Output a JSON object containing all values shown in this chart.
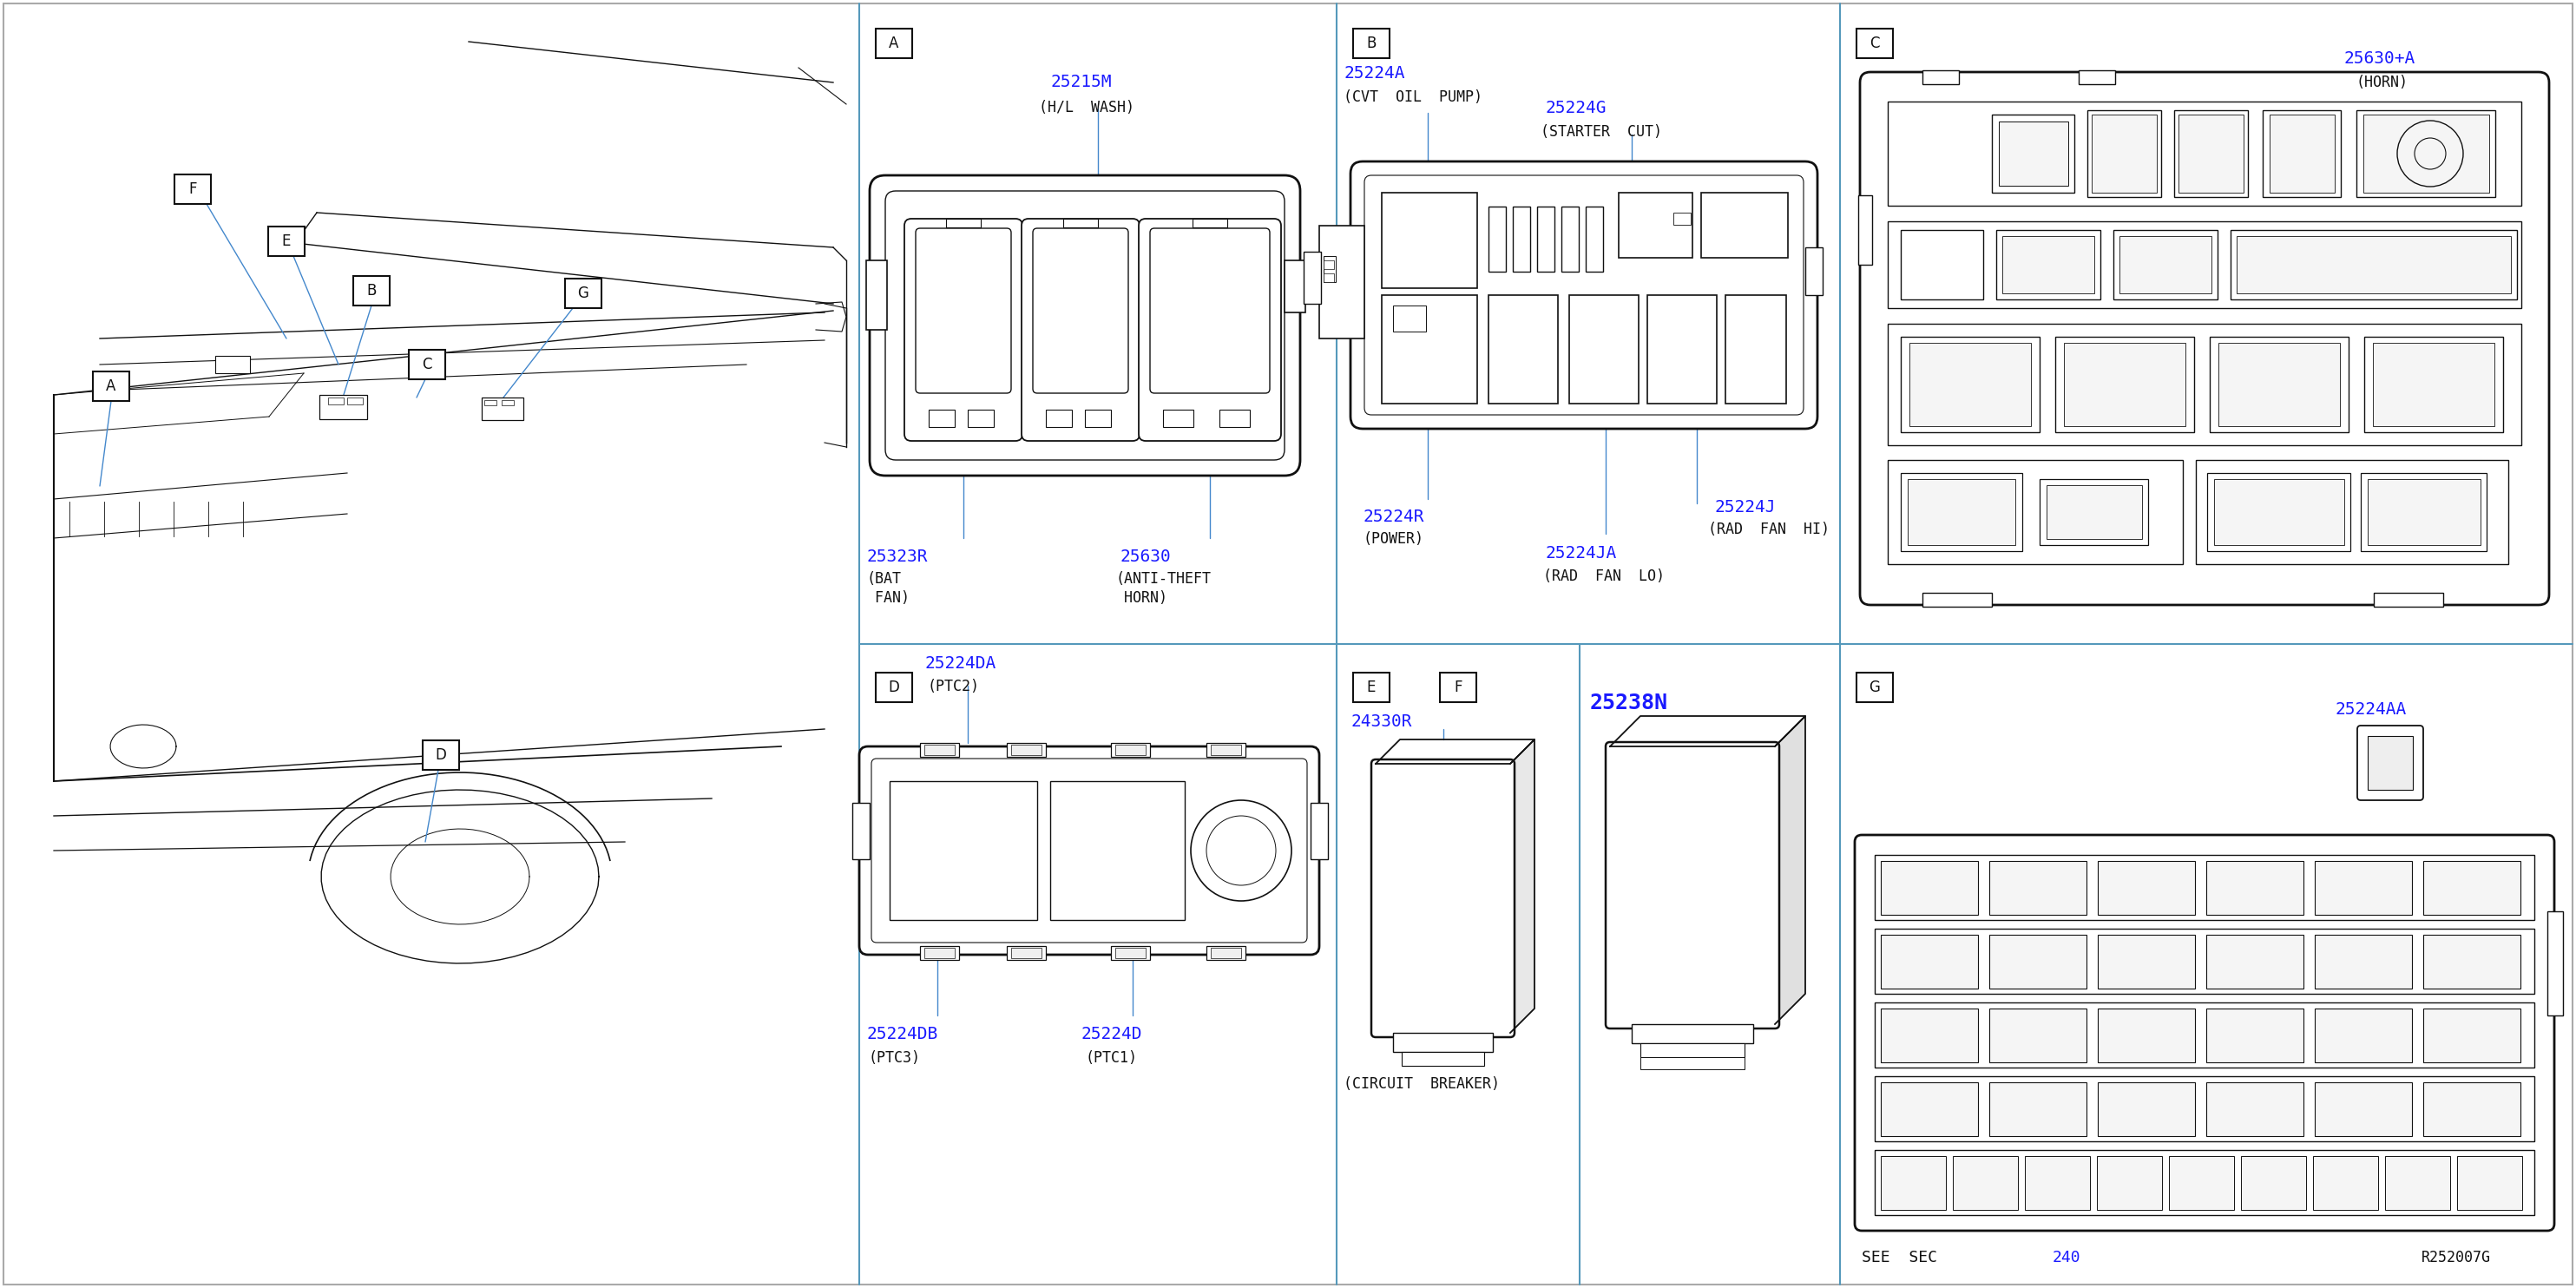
{
  "bg": "#ffffff",
  "blue": "#1a1aff",
  "black": "#111111",
  "lb": "#4488cc",
  "gray": "#666666",
  "lg": "#f0f0f0",
  "ref": "R252007G",
  "A_code1": "25215M",
  "A_desc1": "(H/L  WASH)",
  "A_code2": "25323R",
  "A_desc2a": "(BAT",
  "A_desc2b": " FAN)",
  "A_code3": "25630",
  "A_desc3a": "(ANTI-THEFT",
  "A_desc3b": " HORN)",
  "B_code1": "25224A",
  "B_desc1": "(CVT  OIL  PUMP)",
  "B_code2": "25224G",
  "B_desc2": "(STARTER  CUT)",
  "B_code3": "25224R",
  "B_desc3": "(POWER)",
  "B_code4": "25224J",
  "B_desc4": "(RAD  FAN  HI)",
  "B_code5": "25224JA",
  "B_desc5": "(RAD  FAN  LO)",
  "C_code1": "25630+A",
  "C_desc1": "(HORN)",
  "D_code1": "25224DA",
  "D_desc1": "(PTC2)",
  "D_code2": "25224DB",
  "D_desc2": "(PTC3)",
  "D_code3": "25224D",
  "D_desc3": "(PTC1)",
  "E_code1": "24330R",
  "E_desc1": "(CIRCUIT  BREAKER)",
  "F_code1": "25238N",
  "G_code1": "25224AA",
  "G_see": "SEE  SEC",
  "G_num": "240"
}
